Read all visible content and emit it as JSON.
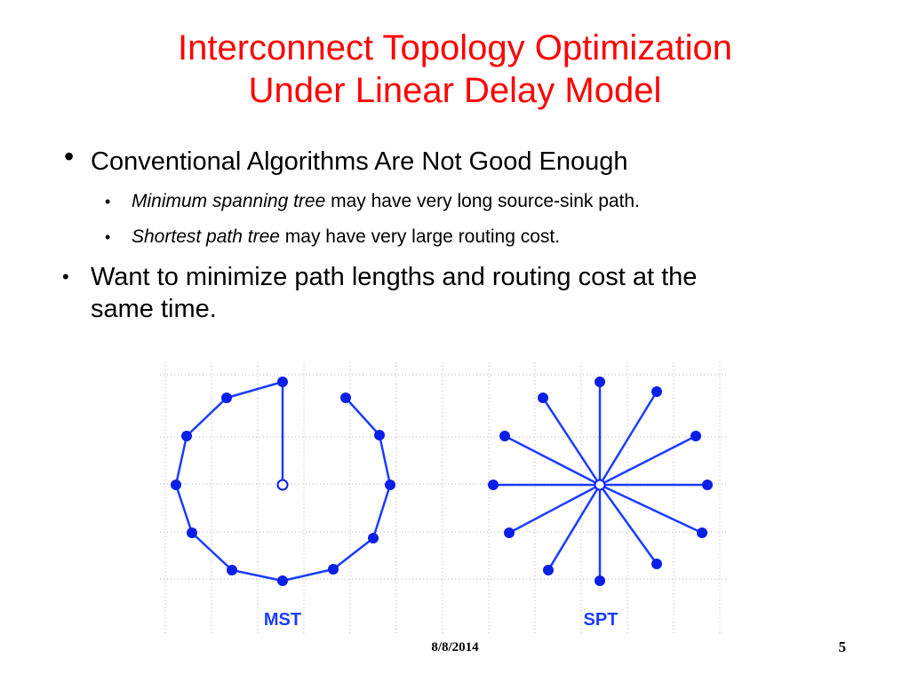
{
  "slide": {
    "title_line1": "Interconnect Topology Optimization",
    "title_line2": "Under Linear Delay Model",
    "bullets": [
      {
        "text": "Conventional Algorithms Are Not Good Enough",
        "subbullets": [
          {
            "emphasis": "Minimum spanning tree",
            "rest": " may have very long source-sink path."
          },
          {
            "emphasis": "Shortest path tree",
            "rest": " may have very large routing cost."
          }
        ]
      },
      {
        "text_line1": "Want to minimize path lengths and routing cost at the",
        "text_line2": "same time."
      }
    ],
    "figure": {
      "mst_label": "MST",
      "spt_label": "SPT",
      "node_color": "#0a1fe6",
      "edge_color": "#1a3cff",
      "grid_color": "#b0b0b0"
    },
    "footer_date": "8/8/2014",
    "page_number": "5"
  }
}
